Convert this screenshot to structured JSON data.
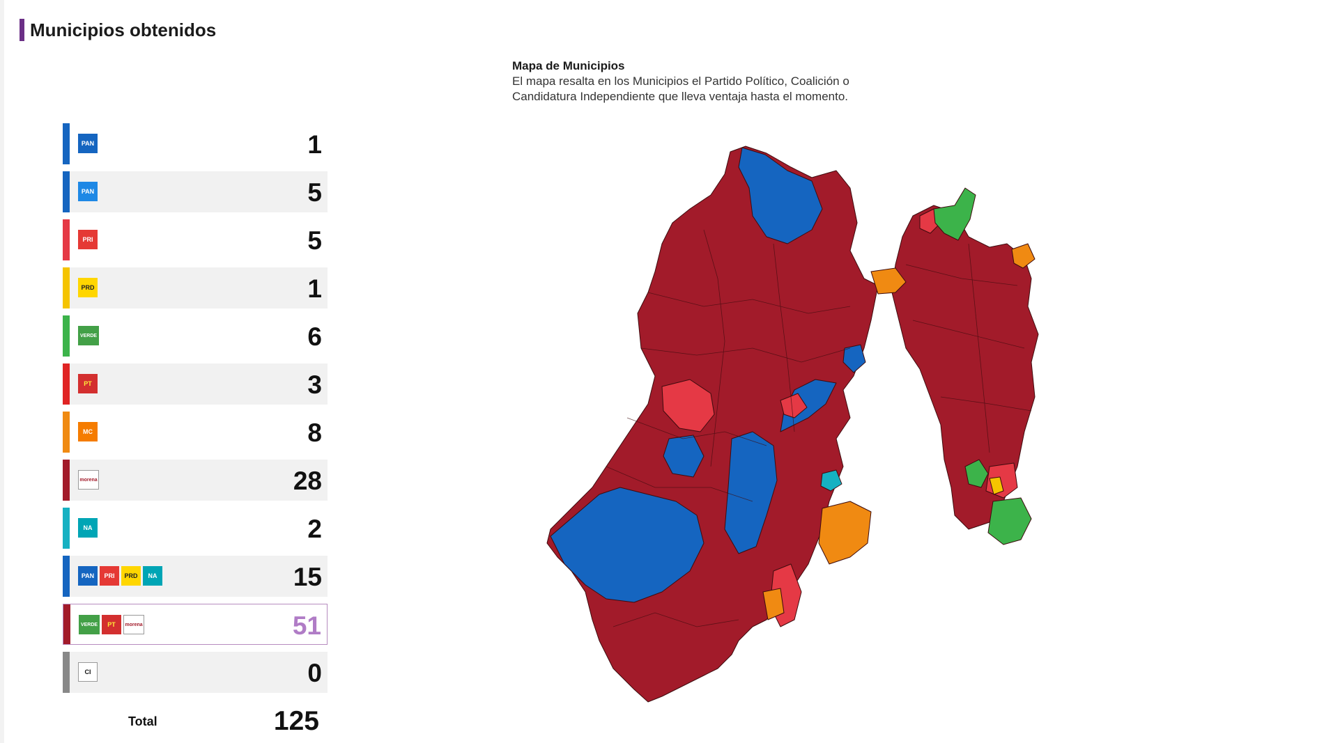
{
  "section_title": "Municipios obtenidos",
  "map_info": {
    "title": "Mapa de Municipios",
    "description": "El mapa resalta en los Municipios el Partido Político, Coalición o Candidatura Independiente que lleva ventaja hasta el momento."
  },
  "parties": [
    {
      "logos": [
        {
          "icon": "pan-logo",
          "text": "PAN",
          "bg": "#1565c0",
          "fg": "#ffffff"
        }
      ],
      "count": "1",
      "color": "#1565c0"
    },
    {
      "logos": [
        {
          "icon": "pan-pri-prd-logo",
          "text": "PAN",
          "bg": "#1e88e5",
          "fg": "#ffffff"
        }
      ],
      "count": "5",
      "color": "#1565c0"
    },
    {
      "logos": [
        {
          "icon": "pri-logo",
          "text": "PRI",
          "bg": "#e53935",
          "fg": "#ffffff"
        }
      ],
      "count": "5",
      "color": "#e53945"
    },
    {
      "logos": [
        {
          "icon": "prd-logo",
          "text": "PRD",
          "bg": "#ffd600",
          "fg": "#222222"
        }
      ],
      "count": "1",
      "color": "#f5c400"
    },
    {
      "logos": [
        {
          "icon": "pvem-logo",
          "text": "VERDE",
          "bg": "#43a047",
          "fg": "#ffffff"
        }
      ],
      "count": "6",
      "color": "#3cb34a"
    },
    {
      "logos": [
        {
          "icon": "pt-logo",
          "text": "PT",
          "bg": "#d32f2f",
          "fg": "#ffeb3b"
        }
      ],
      "count": "3",
      "color": "#e02424"
    },
    {
      "logos": [
        {
          "icon": "mc-logo",
          "text": "MC",
          "bg": "#f57c00",
          "fg": "#ffffff"
        }
      ],
      "count": "8",
      "color": "#f08a12"
    },
    {
      "logos": [
        {
          "icon": "morena-logo",
          "text": "morena",
          "bg": "#ffffff",
          "fg": "#a21b2a"
        }
      ],
      "count": "28",
      "color": "#a21b2a"
    },
    {
      "logos": [
        {
          "icon": "nueva-alianza-logo",
          "text": "NA",
          "bg": "#00a5b5",
          "fg": "#ffffff"
        }
      ],
      "count": "2",
      "color": "#16b1c2"
    },
    {
      "logos": [
        {
          "icon": "pan-logo",
          "text": "PAN",
          "bg": "#1565c0",
          "fg": "#ffffff"
        },
        {
          "icon": "pri-logo",
          "text": "PRI",
          "bg": "#e53935",
          "fg": "#ffffff"
        },
        {
          "icon": "prd-logo",
          "text": "PRD",
          "bg": "#ffd600",
          "fg": "#222222"
        },
        {
          "icon": "nueva-alianza-logo",
          "text": "NA",
          "bg": "#00a5b5",
          "fg": "#ffffff"
        }
      ],
      "count": "15",
      "color": "#1565c0"
    },
    {
      "logos": [
        {
          "icon": "pvem-logo",
          "text": "VERDE",
          "bg": "#43a047",
          "fg": "#ffffff"
        },
        {
          "icon": "pt-logo",
          "text": "PT",
          "bg": "#d32f2f",
          "fg": "#ffeb3b"
        },
        {
          "icon": "morena-logo",
          "text": "morena",
          "bg": "#ffffff",
          "fg": "#a21b2a"
        }
      ],
      "count": "51",
      "color": "#a21b2a",
      "highlight": true
    },
    {
      "logos": [
        {
          "icon": "ci-logo",
          "text": "CI",
          "bg": "#ffffff",
          "fg": "#111111"
        }
      ],
      "count": "0",
      "color": "#888888"
    }
  ],
  "total": {
    "label": "Total",
    "value": "125"
  },
  "map_colors": {
    "morena": "#a21b2a",
    "pan": "#1565c0",
    "pri": "#e53945",
    "mc": "#f08a12",
    "pvem": "#3cb34a",
    "prd": "#f5c400",
    "na": "#16b1c2"
  }
}
